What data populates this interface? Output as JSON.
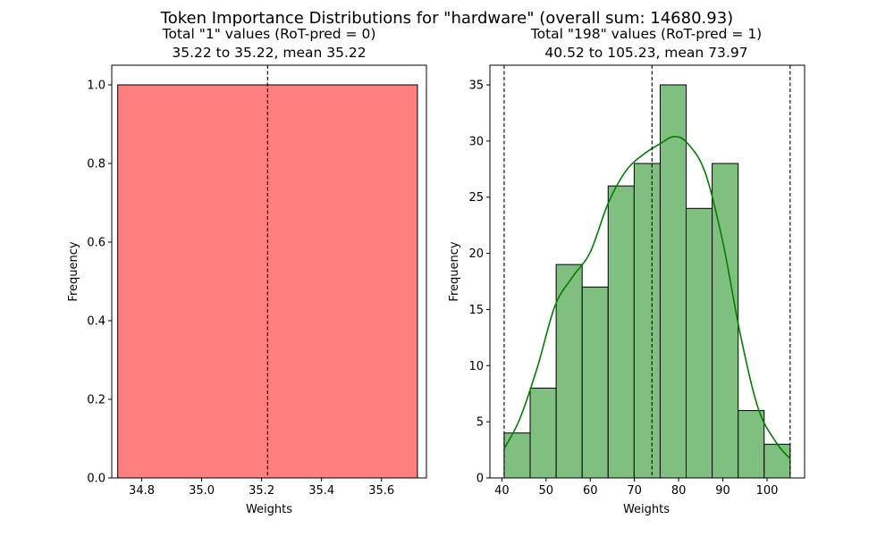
{
  "suptitle": "Token Importance Distributions for \"hardware\" (overall  sum: 14680.93)",
  "chart_data": [
    {
      "type": "bar",
      "subtype": "histogram",
      "title_line1": "Total \"1\" values (RoT-pred = 0)",
      "title_line2": "35.22 to 35.22, mean 35.22",
      "xlabel": "Weights",
      "ylabel": "Frequency",
      "xlim": [
        34.7,
        35.75
      ],
      "ylim": [
        0,
        1.05
      ],
      "xticks": [
        34.8,
        35.0,
        35.2,
        35.4,
        35.6
      ],
      "xtick_labels": [
        "34.8",
        "35.0",
        "35.2",
        "35.4",
        "35.6"
      ],
      "yticks": [
        0.0,
        0.2,
        0.4,
        0.6,
        0.8,
        1.0
      ],
      "ytick_labels": [
        "0.0",
        "0.2",
        "0.4",
        "0.6",
        "0.8",
        "1.0"
      ],
      "bins": [
        {
          "x0": 34.72,
          "x1": 35.72,
          "count": 1
        }
      ],
      "bar_color": "#ff7f7f",
      "vlines": [
        35.22
      ],
      "grid": false
    },
    {
      "type": "bar",
      "subtype": "histogram",
      "title_line1": "Total \"198\" values (RoT-pred = 1)",
      "title_line2": "40.52 to 105.23, mean 73.97",
      "xlabel": "Weights",
      "ylabel": "Frequency",
      "xlim": [
        37.3,
        108.5
      ],
      "ylim": [
        0,
        36.75
      ],
      "xticks": [
        40,
        50,
        60,
        70,
        80,
        90,
        100
      ],
      "xtick_labels": [
        "40",
        "50",
        "60",
        "70",
        "80",
        "90",
        "100"
      ],
      "yticks": [
        0,
        5,
        10,
        15,
        20,
        25,
        30,
        35
      ],
      "ytick_labels": [
        "0",
        "5",
        "10",
        "15",
        "20",
        "25",
        "30",
        "35"
      ],
      "bin_edges": [
        40.52,
        46.4,
        52.29,
        58.17,
        64.05,
        69.94,
        75.82,
        81.7,
        87.58,
        93.47,
        99.35,
        105.23
      ],
      "counts": [
        4,
        8,
        19,
        17,
        26,
        28,
        35,
        24,
        28,
        6,
        3
      ],
      "bar_color": "#7fbf7f",
      "kde": {
        "color": "#008000",
        "x": [
          40.52,
          44,
          48,
          52,
          56,
          60,
          64,
          68,
          72,
          76,
          79,
          82,
          86,
          90,
          94,
          98,
          102,
          105.23
        ],
        "y": [
          2.6,
          5.2,
          9.8,
          15.3,
          17.9,
          20.1,
          24.4,
          27.3,
          28.8,
          29.8,
          30.4,
          29.8,
          27.2,
          21.0,
          12.7,
          6.2,
          3.2,
          1.7
        ]
      },
      "vlines": [
        40.52,
        73.97,
        105.23
      ],
      "grid": false
    }
  ]
}
